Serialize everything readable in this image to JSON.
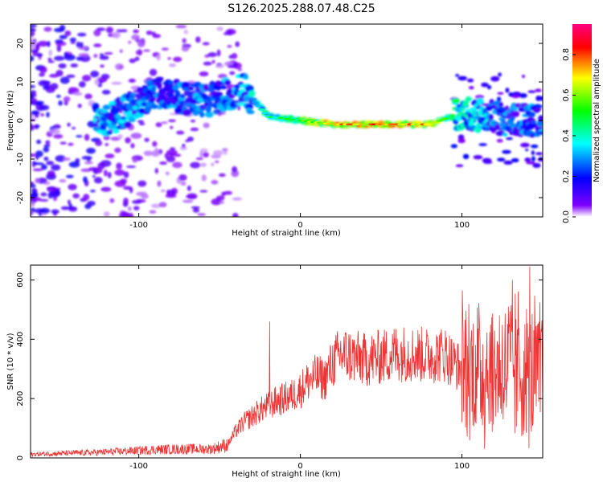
{
  "title": "S126.2025.288.07.48.C25",
  "chart_data": [
    {
      "type": "heatmap",
      "xlabel": "Height of straight line (km)",
      "ylabel": "Frequency (Hz)",
      "xlim": [
        -167,
        150
      ],
      "ylim": [
        -25,
        25
      ],
      "xticks": [
        "-100",
        "0",
        "100"
      ],
      "xtick_values": [
        -100,
        0,
        100
      ],
      "yticks": [
        "-20",
        "-10",
        "0",
        "10",
        "20"
      ],
      "ytick_values": [
        -20,
        -10,
        0,
        10,
        20
      ],
      "colorbar": {
        "label": "Normalized spectral amplitude",
        "range": [
          0.0,
          0.95
        ],
        "ticks": [
          "0.0",
          "0.2",
          "0.4",
          "0.6",
          "0.8"
        ],
        "tick_values": [
          0.0,
          0.2,
          0.4,
          0.6,
          0.8
        ],
        "colormap": [
          "#ff00ff",
          "#ff0000",
          "#ffff00",
          "#00ff00",
          "#00ffff",
          "#0000ff",
          "#8000ff",
          "#ffffff"
        ]
      },
      "ridge": [
        {
          "x": -120,
          "freq": 0,
          "amp": 0.35
        },
        {
          "x": -90,
          "freq": 7,
          "amp": 0.3
        },
        {
          "x": -60,
          "freq": 5,
          "amp": 0.3
        },
        {
          "x": -35,
          "freq": 8,
          "amp": 0.35
        },
        {
          "x": -20,
          "freq": 1,
          "amp": 0.5
        },
        {
          "x": 0,
          "freq": 0,
          "amp": 0.6
        },
        {
          "x": 20,
          "freq": -1,
          "amp": 0.8
        },
        {
          "x": 50,
          "freq": -1,
          "amp": 0.85
        },
        {
          "x": 80,
          "freq": -1,
          "amp": 0.8
        },
        {
          "x": 100,
          "freq": 2,
          "amp": 0.4
        },
        {
          "x": 130,
          "freq": 0,
          "amp": 0.3
        }
      ]
    },
    {
      "type": "line",
      "xlabel": "Height of straight line (km)",
      "ylabel": "SNR (10 * v/v)",
      "xlim": [
        -167,
        150
      ],
      "ylim": [
        0,
        650
      ],
      "xticks": [
        "-100",
        "0",
        "100"
      ],
      "xtick_values": [
        -100,
        0,
        100
      ],
      "yticks": [
        "0",
        "200",
        "400",
        "600"
      ],
      "ytick_values": [
        0,
        200,
        400,
        600
      ],
      "line_color": "#ee3333",
      "series": [
        {
          "name": "SNR",
          "x": [
            -167,
            -150,
            -130,
            -110,
            -90,
            -70,
            -55,
            -45,
            -40,
            -35,
            -30,
            -25,
            -20,
            -15,
            -10,
            -5,
            0,
            5,
            10,
            15,
            20,
            25,
            30,
            40,
            50,
            60,
            70,
            80,
            90,
            95,
            100,
            105,
            110,
            120,
            130,
            140,
            150
          ],
          "values": [
            12,
            15,
            18,
            22,
            28,
            30,
            30,
            45,
            90,
            120,
            140,
            160,
            175,
            190,
            200,
            210,
            230,
            260,
            275,
            265,
            320,
            350,
            345,
            330,
            340,
            355,
            350,
            345,
            350,
            320,
            300,
            290,
            300,
            290,
            310,
            280,
            290
          ],
          "spread_start_x": 100,
          "peaks": [
            {
              "x": -19,
              "value": 460
            },
            {
              "x": 142,
              "value": 645
            }
          ]
        }
      ]
    }
  ]
}
